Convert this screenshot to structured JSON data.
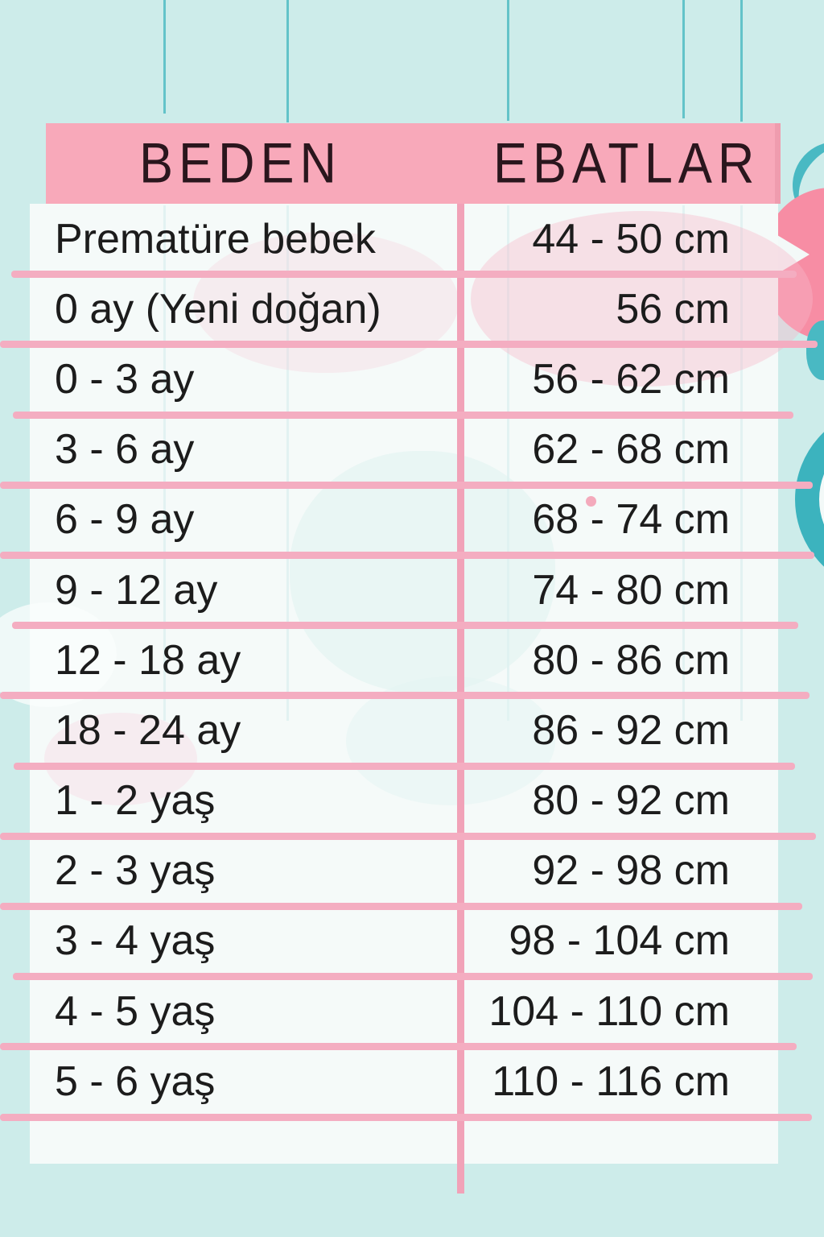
{
  "table": {
    "columns": [
      "BEDEN",
      "EBATLAR"
    ],
    "rows": [
      {
        "beden": "Prematüre bebek",
        "ebat": "44 - 50 cm"
      },
      {
        "beden": "0 ay (Yeni doğan)",
        "ebat": "56 cm"
      },
      {
        "beden": "0 - 3 ay",
        "ebat": "56 - 62 cm"
      },
      {
        "beden": "3 - 6 ay",
        "ebat": "62 - 68 cm"
      },
      {
        "beden": "6 - 9 ay",
        "ebat": "68 - 74 cm"
      },
      {
        "beden": "9 - 12 ay",
        "ebat": "74 - 80 cm"
      },
      {
        "beden": "12 - 18 ay",
        "ebat": "80 - 86 cm"
      },
      {
        "beden": "18 - 24 ay",
        "ebat": "86 - 92 cm"
      },
      {
        "beden": "1 - 2 yaş",
        "ebat": "80 - 92 cm"
      },
      {
        "beden": "2 - 3 yaş",
        "ebat": "92 - 98 cm"
      },
      {
        "beden": "3 - 4 yaş",
        "ebat": "98 - 104 cm"
      },
      {
        "beden": "4 - 5 yaş",
        "ebat": "104 - 110 cm"
      },
      {
        "beden": "5 - 6 yaş",
        "ebat": "110 - 116 cm"
      }
    ]
  },
  "colors": {
    "background_teal": "#cdecea",
    "header_pink": "#f8a9ba",
    "line_pink": "#f4adc1",
    "divider_pink": "#f1a2b8",
    "row_white": "#f5faf9",
    "text_black": "#1c1c1c",
    "header_text": "#2a161d",
    "decor_pink": "#f78da4",
    "decor_teal": "#3cb3be",
    "string_teal": "#63c3c9"
  },
  "chart_data": {
    "type": "table",
    "title": "",
    "columns": [
      "BEDEN",
      "EBATLAR"
    ],
    "rows": [
      [
        "Prematüre bebek",
        "44 - 50 cm"
      ],
      [
        "0 ay (Yeni doğan)",
        "56 cm"
      ],
      [
        "0 - 3 ay",
        "56 - 62 cm"
      ],
      [
        "3 - 6 ay",
        "62 - 68 cm"
      ],
      [
        "6 - 9 ay",
        "68 - 74 cm"
      ],
      [
        "9 - 12 ay",
        "74 - 80 cm"
      ],
      [
        "12 - 18 ay",
        "80 - 86 cm"
      ],
      [
        "18 - 24 ay",
        "86 - 92 cm"
      ],
      [
        "1 - 2 yaş",
        "80 - 92 cm"
      ],
      [
        "2 - 3 yaş",
        "92 - 98 cm"
      ],
      [
        "3 - 4 yaş",
        "98 - 104 cm"
      ],
      [
        "4 - 5 yaş",
        "104 - 110 cm"
      ],
      [
        "5 - 6 yaş",
        "110 - 116 cm"
      ]
    ]
  }
}
